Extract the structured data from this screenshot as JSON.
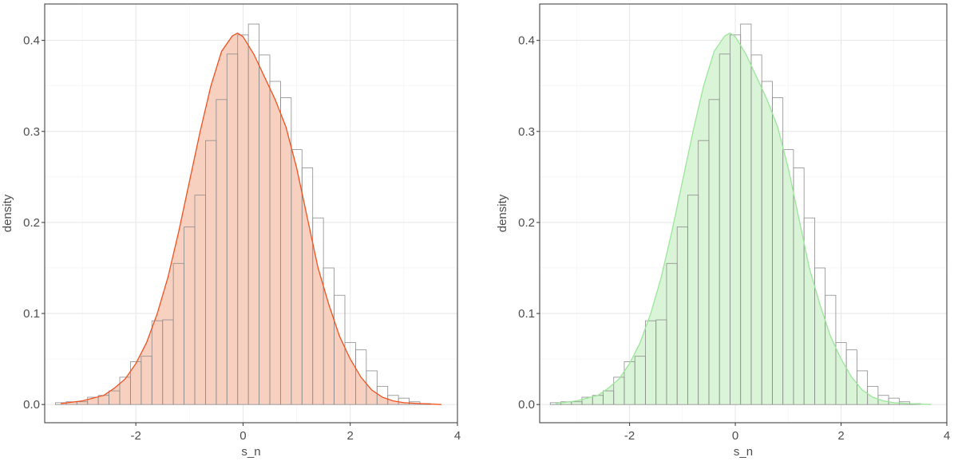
{
  "chart_data": [
    {
      "type": "bar",
      "subtype": "histogram-with-density",
      "xlabel": "s_n",
      "ylabel": "density",
      "xlim": [
        -3.7,
        4.0
      ],
      "ylim": [
        -0.02,
        0.44
      ],
      "xticks": [
        "-2",
        "0",
        "2",
        "4"
      ],
      "xtick_values": [
        -2,
        0,
        2,
        4
      ],
      "yticks": [
        "0.0",
        "0.1",
        "0.2",
        "0.3",
        "0.4"
      ],
      "ytick_values": [
        0.0,
        0.1,
        0.2,
        0.3,
        0.4
      ],
      "grid": true,
      "bin_width": 0.2,
      "bins_start": -3.5,
      "histogram_values": [
        0.002,
        0.003,
        0.003,
        0.008,
        0.01,
        0.015,
        0.03,
        0.047,
        0.053,
        0.092,
        0.093,
        0.155,
        0.195,
        0.23,
        0.29,
        0.335,
        0.385,
        0.406,
        0.418,
        0.384,
        0.355,
        0.337,
        0.28,
        0.26,
        0.205,
        0.15,
        0.12,
        0.068,
        0.06,
        0.037,
        0.02,
        0.01,
        0.007,
        0.003,
        0.001
      ],
      "density_x": [
        -3.4,
        -3.0,
        -2.6,
        -2.4,
        -2.2,
        -2.0,
        -1.8,
        -1.6,
        -1.4,
        -1.2,
        -1.0,
        -0.8,
        -0.6,
        -0.4,
        -0.2,
        -0.1,
        0.0,
        0.2,
        0.4,
        0.6,
        0.8,
        1.0,
        1.2,
        1.4,
        1.6,
        1.8,
        2.0,
        2.2,
        2.4,
        2.6,
        2.8,
        3.0,
        3.3,
        3.7
      ],
      "density_y": [
        0.001,
        0.004,
        0.01,
        0.018,
        0.028,
        0.045,
        0.068,
        0.1,
        0.14,
        0.19,
        0.245,
        0.3,
        0.35,
        0.388,
        0.405,
        0.408,
        0.404,
        0.385,
        0.36,
        0.335,
        0.305,
        0.26,
        0.205,
        0.15,
        0.11,
        0.075,
        0.05,
        0.03,
        0.016,
        0.008,
        0.004,
        0.002,
        0.001,
        0.0
      ],
      "colors": {
        "fill": "#f7d0c0",
        "line": "#f0521f",
        "bar_border": "#8c8c8c"
      }
    },
    {
      "type": "bar",
      "subtype": "histogram-with-density",
      "xlabel": "s_n",
      "ylabel": "density",
      "xlim": [
        -3.7,
        4.0
      ],
      "ylim": [
        -0.02,
        0.44
      ],
      "xticks": [
        "-2",
        "0",
        "2",
        "4"
      ],
      "xtick_values": [
        -2,
        0,
        2,
        4
      ],
      "yticks": [
        "0.0",
        "0.1",
        "0.2",
        "0.3",
        "0.4"
      ],
      "ytick_values": [
        0.0,
        0.1,
        0.2,
        0.3,
        0.4
      ],
      "grid": true,
      "bin_width": 0.2,
      "bins_start": -3.5,
      "histogram_values": [
        0.002,
        0.003,
        0.003,
        0.008,
        0.01,
        0.015,
        0.03,
        0.047,
        0.053,
        0.092,
        0.093,
        0.155,
        0.195,
        0.23,
        0.29,
        0.335,
        0.385,
        0.406,
        0.418,
        0.384,
        0.355,
        0.337,
        0.28,
        0.26,
        0.205,
        0.15,
        0.12,
        0.068,
        0.06,
        0.037,
        0.02,
        0.01,
        0.007,
        0.003,
        0.001
      ],
      "density_x": [
        -3.4,
        -3.0,
        -2.6,
        -2.4,
        -2.2,
        -2.0,
        -1.8,
        -1.6,
        -1.4,
        -1.2,
        -1.0,
        -0.8,
        -0.6,
        -0.4,
        -0.2,
        -0.1,
        0.0,
        0.2,
        0.4,
        0.6,
        0.8,
        1.0,
        1.2,
        1.4,
        1.6,
        1.8,
        2.0,
        2.2,
        2.4,
        2.6,
        2.8,
        3.0,
        3.3,
        3.7
      ],
      "density_y": [
        0.001,
        0.004,
        0.01,
        0.018,
        0.028,
        0.045,
        0.068,
        0.1,
        0.14,
        0.19,
        0.245,
        0.3,
        0.35,
        0.388,
        0.405,
        0.408,
        0.404,
        0.385,
        0.36,
        0.335,
        0.305,
        0.26,
        0.205,
        0.15,
        0.11,
        0.075,
        0.05,
        0.03,
        0.016,
        0.008,
        0.004,
        0.002,
        0.001,
        0.0
      ],
      "colors": {
        "fill": "#d9f4d7",
        "line": "#9ce69a",
        "bar_border": "#8c8c8c"
      }
    }
  ]
}
